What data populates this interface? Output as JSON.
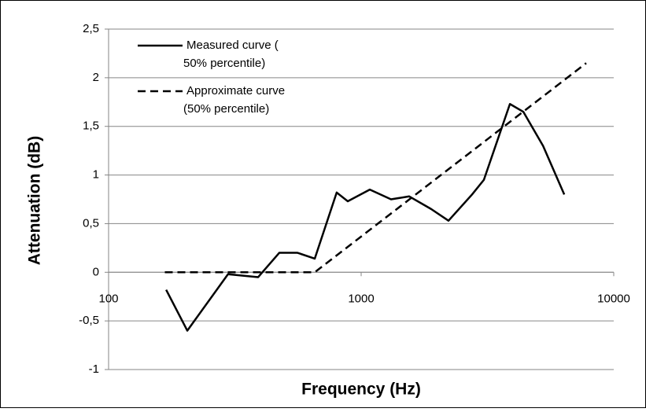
{
  "chart_data": {
    "type": "line",
    "xlabel": "Frequency (Hz)",
    "ylabel": "Attenuation (dB)",
    "xscale": "log",
    "xlim": [
      100,
      10000
    ],
    "xticks": [
      100,
      1000,
      10000
    ],
    "ylim": [
      -1,
      2.5
    ],
    "yticks": [
      {
        "value": -1,
        "label": "-1"
      },
      {
        "value": -0.5,
        "label": "-0,5"
      },
      0,
      {
        "value": 0.5,
        "label": "0,5"
      },
      1,
      {
        "value": 1.5,
        "label": "1,5"
      },
      2,
      {
        "value": 2.5,
        "label": "2,5"
      }
    ],
    "grid": true,
    "legend": "upper left",
    "series": [
      {
        "name": "Measured curve (\n50% percentile)",
        "color": "#000000",
        "dash": false,
        "x": [
          169,
          205,
          297,
          391,
          474,
          560,
          655,
          800,
          885,
          1082,
          1313,
          1550,
          1893,
          2217,
          2749,
          3061,
          3881,
          4385,
          5250,
          6370
        ],
        "values": [
          -0.18,
          -0.6,
          -0.02,
          -0.05,
          0.2,
          0.2,
          0.14,
          0.82,
          0.73,
          0.85,
          0.75,
          0.78,
          0.65,
          0.53,
          0.8,
          0.95,
          1.73,
          1.65,
          1.3,
          0.8
        ]
      },
      {
        "name": "Approximate curve\n(50% percentile)",
        "color": "#000000",
        "dash": true,
        "x": [
          167,
          655,
          7780
        ],
        "values": [
          0,
          0,
          2.15
        ]
      }
    ]
  }
}
